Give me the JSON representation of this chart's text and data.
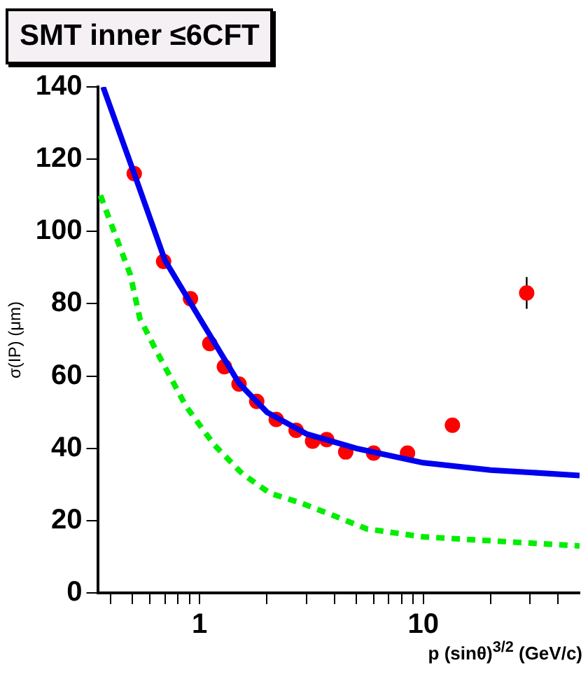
{
  "chart_data": {
    "type": "scatter",
    "title": "SMT inner ≤6CFT",
    "xlabel": "p (sinθ)$^{3/2}$ (GeV/c)",
    "ylabel": "σ(IP) (μm)",
    "log": "x",
    "grid": false,
    "legend": false,
    "marker": "circle",
    "xlim": [
      0.35,
      50
    ],
    "ylim": [
      0,
      140
    ],
    "xticks": [
      {
        "value": 0.4,
        "label": null
      },
      {
        "value": 0.5,
        "label": null
      },
      {
        "value": 0.6,
        "label": null
      },
      {
        "value": 0.7,
        "label": null
      },
      {
        "value": 0.8,
        "label": null
      },
      {
        "value": 0.9,
        "label": null
      },
      1,
      {
        "value": 2,
        "label": null
      },
      {
        "value": 3,
        "label": null
      },
      {
        "value": 4,
        "label": null
      },
      {
        "value": 5,
        "label": null
      },
      {
        "value": 6,
        "label": null
      },
      {
        "value": 7,
        "label": null
      },
      {
        "value": 8,
        "label": null
      },
      {
        "value": 9,
        "label": null
      },
      10,
      {
        "value": 20,
        "label": null
      },
      {
        "value": 30,
        "label": null
      },
      {
        "value": 40,
        "label": null
      }
    ],
    "yticks": [
      0,
      20,
      40,
      60,
      80,
      100,
      120,
      140
    ],
    "series": [
      {
        "type": "line",
        "marker": "none",
        "color": "#00ee00",
        "line_style": "dashed",
        "x": [
          0.36,
          0.49,
          0.54,
          0.64,
          0.87,
          1.16,
          1.55,
          2.06,
          2.8,
          3.75,
          5.6,
          10,
          16.8,
          50
        ],
        "values": [
          110,
          88,
          76,
          67,
          51.6,
          41,
          33,
          27.6,
          25,
          22,
          17.7,
          15.5,
          14.7,
          13
        ]
      },
      {
        "type": "line",
        "marker": "none",
        "color": "#0000ee",
        "line_style": "solid",
        "x": [
          0.37,
          0.51,
          0.7,
          1,
          1.5,
          2,
          3,
          5,
          10,
          20,
          50
        ],
        "values": [
          140,
          116,
          92,
          76,
          58,
          50,
          44,
          40,
          36,
          34,
          32.5
        ]
      },
      {
        "color": "#ff0000",
        "x": [
          0.51,
          0.69,
          0.91,
          1.11,
          1.29,
          1.5,
          1.8,
          2.2,
          2.7,
          3.2,
          3.7,
          4.5,
          6.0,
          8.5,
          13.5,
          29
        ],
        "values": [
          116,
          91.7,
          81.4,
          69,
          62.6,
          57.8,
          53,
          48,
          45,
          42,
          42.4,
          39,
          38.7,
          38.7,
          46.4,
          83
        ],
        "errors": [
          null,
          null,
          null,
          null,
          null,
          null,
          null,
          null,
          null,
          null,
          null,
          null,
          null,
          null,
          null,
          4.4
        ]
      }
    ]
  }
}
